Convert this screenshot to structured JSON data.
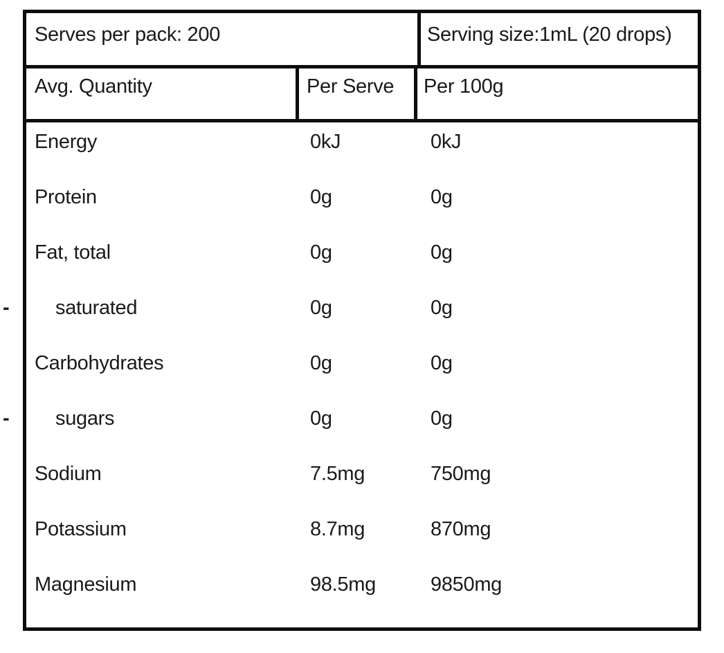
{
  "colors": {
    "background": "#ffffff",
    "text": "#1a1a1a",
    "border": "#0d0d0d"
  },
  "table": {
    "top_row": {
      "serves_per_pack": "Serves per pack: 200",
      "serving_size": "Serving size:1mL (20 drops)"
    },
    "header": {
      "avg_quantity": "Avg. Quantity",
      "per_serve": "Per Serve",
      "per_100g": "Per 100g"
    },
    "rows": [
      {
        "label": "Energy",
        "per_serve": "0kJ",
        "per_100g": "0kJ",
        "indent": false,
        "dash": ""
      },
      {
        "label": "Protein",
        "per_serve": "0g",
        "per_100g": "0g",
        "indent": false,
        "dash": ""
      },
      {
        "label": "Fat, total",
        "per_serve": "0g",
        "per_100g": "0g",
        "indent": false,
        "dash": ""
      },
      {
        "label": "saturated",
        "per_serve": "0g",
        "per_100g": "0g",
        "indent": true,
        "dash": "-"
      },
      {
        "label": "Carbohydrates",
        "per_serve": "0g",
        "per_100g": "0g",
        "indent": false,
        "dash": ""
      },
      {
        "label": "sugars",
        "per_serve": "0g",
        "per_100g": "0g",
        "indent": true,
        "dash": "-"
      },
      {
        "label": "Sodium",
        "per_serve": "7.5mg",
        "per_100g": "750mg",
        "indent": false,
        "dash": ""
      },
      {
        "label": "Potassium",
        "per_serve": "8.7mg",
        "per_100g": "870mg",
        "indent": false,
        "dash": ""
      },
      {
        "label": "Magnesium",
        "per_serve": "98.5mg",
        "per_100g": "9850mg",
        "indent": false,
        "dash": ""
      }
    ]
  }
}
